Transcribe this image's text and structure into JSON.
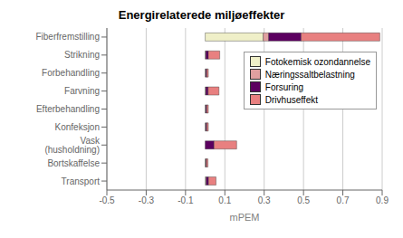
{
  "chart_data": {
    "type": "bar",
    "title": "Energirelaterede miljøeffekter",
    "xlabel": "mPEM",
    "orientation": "horizontal",
    "stacked": true,
    "categories": [
      "Transport",
      "Bortskaffelse",
      "Vask (husholdning)",
      "Konfeksjon",
      "Efterbehandling",
      "Farvning",
      "Forbehandling",
      "Strikning",
      "Fiberfremstilling"
    ],
    "series": [
      {
        "name": "Fotokemisk ozondannelse",
        "color": "#efefc8",
        "values": [
          0.005,
          0.003,
          0.0,
          0.003,
          0.003,
          0.003,
          0.003,
          0.003,
          0.295
        ]
      },
      {
        "name": "Næringssaltbelastning",
        "color": "#e0a0a0",
        "values": [
          0.0,
          0.0,
          0.0,
          0.0,
          0.0,
          0.0,
          0.0,
          0.0,
          0.028
        ]
      },
      {
        "name": "Forsuring",
        "color": "#5c0060",
        "values": [
          0.012,
          0.003,
          0.045,
          0.005,
          0.005,
          0.012,
          0.005,
          0.013,
          0.165
        ]
      },
      {
        "name": "Drivhuseffekt",
        "color": "#e88080",
        "values": [
          0.038,
          0.008,
          0.115,
          0.008,
          0.008,
          0.055,
          0.008,
          0.058,
          0.4
        ]
      }
    ],
    "xlim": [
      -0.5,
      0.9
    ],
    "xticks": [
      -0.5,
      -0.3,
      -0.1,
      0.1,
      0.3,
      0.5,
      0.7,
      0.9
    ],
    "grid": true,
    "legend": "upper right"
  }
}
